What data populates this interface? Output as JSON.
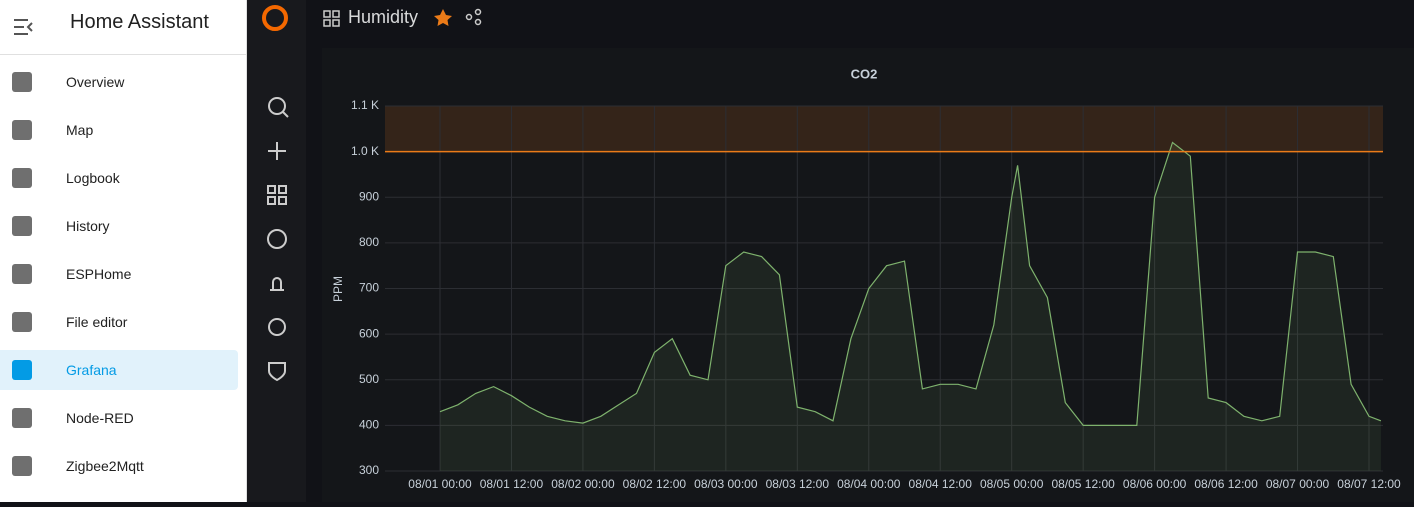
{
  "sidebar": {
    "title": "Home Assistant",
    "active": 6,
    "items": [
      "Overview",
      "Map",
      "Logbook",
      "History",
      "ESPHome",
      "File editor",
      "Grafana",
      "Node-RED",
      "Zigbee2Mqtt"
    ]
  },
  "header": {
    "title": "Humidity"
  },
  "chart_data": {
    "type": "line",
    "title": "CO2",
    "y_label": "PPM",
    "x": [
      "08/01 00:00",
      "08/01 03:00",
      "08/01 06:00",
      "08/01 09:00",
      "08/01 12:00",
      "08/01 15:00",
      "08/01 18:00",
      "08/01 21:00",
      "08/02 00:00",
      "08/02 03:00",
      "08/02 06:00",
      "08/02 09:00",
      "08/02 12:00",
      "08/02 15:00",
      "08/02 18:00",
      "08/02 21:00",
      "08/03 00:00",
      "08/03 03:00",
      "08/03 06:00",
      "08/03 09:00",
      "08/03 12:00",
      "08/03 15:00",
      "08/03 18:00",
      "08/03 21:00",
      "08/04 00:00",
      "08/04 03:00",
      "08/04 06:00",
      "08/04 09:00",
      "08/04 12:00",
      "08/04 15:00",
      "08/04 18:00",
      "08/04 21:00",
      "08/05 00:00",
      "08/05 01:00",
      "08/05 03:00",
      "08/05 06:00",
      "08/05 09:00",
      "08/05 12:00",
      "08/05 15:00",
      "08/05 18:00",
      "08/05 21:00",
      "08/06 00:00",
      "08/06 03:00",
      "08/06 06:00",
      "08/06 09:00",
      "08/06 12:00",
      "08/06 15:00",
      "08/06 18:00",
      "08/06 21:00",
      "08/07 00:00",
      "08/07 03:00",
      "08/07 06:00",
      "08/07 09:00",
      "08/07 12:00",
      "08/07 14:00"
    ],
    "series": [
      {
        "name": "CO2",
        "color": "#7eb26d",
        "values": [
          430,
          445,
          470,
          485,
          465,
          440,
          420,
          410,
          405,
          420,
          445,
          470,
          560,
          590,
          510,
          500,
          750,
          780,
          770,
          730,
          440,
          430,
          410,
          590,
          700,
          750,
          760,
          480,
          490,
          490,
          480,
          620,
          900,
          970,
          750,
          680,
          450,
          400,
          400,
          400,
          400,
          900,
          1020,
          990,
          460,
          450,
          420,
          410,
          420,
          780,
          780,
          770,
          490,
          420,
          410
        ]
      }
    ],
    "ylim": [
      300,
      1100
    ],
    "yticks": [
      300,
      400,
      500,
      600,
      700,
      800,
      900,
      {
        "value": 1000,
        "label": "1.0 K"
      },
      {
        "value": 1100,
        "label": "1.1 K"
      }
    ],
    "xticks": [
      "08/01 00:00",
      "08/01 12:00",
      "08/02 00:00",
      "08/02 12:00",
      "08/03 00:00",
      "08/03 12:00",
      "08/04 00:00",
      "08/04 12:00",
      "08/05 00:00",
      "08/05 12:00",
      "08/06 00:00",
      "08/06 12:00",
      "08/07 00:00",
      "08/07 12:00"
    ],
    "threshold": 1000,
    "threshold_color": "#eb7b18",
    "grid": true
  }
}
